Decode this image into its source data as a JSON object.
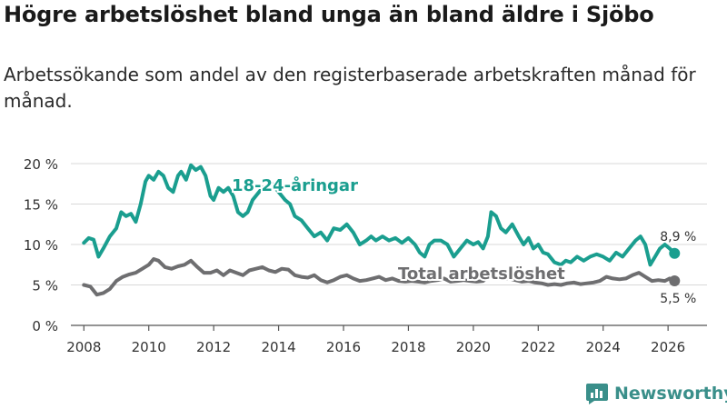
{
  "title": "Högre arbetslöshet bland unga än bland äldre i Sjöbo",
  "subtitle": "Arbetssökande som andel av den registerbaserade arbetskraften månad för månad.",
  "brand": "Newsworthy",
  "colors": {
    "youth": "#1a9e8f",
    "total": "#6e6e70",
    "grid": "#d8d8d8",
    "brand": "#3a8f8a"
  },
  "chart_data": {
    "type": "line",
    "title": "",
    "xlabel": "",
    "ylabel": "",
    "ylim": [
      0,
      20
    ],
    "xlim": [
      2007.6,
      2027.2
    ],
    "grid": true,
    "y_ticks": [
      {
        "value": 0,
        "label": "0 %"
      },
      {
        "value": 5,
        "label": "5 %"
      },
      {
        "value": 10,
        "label": "10 %"
      },
      {
        "value": 15,
        "label": "15 %"
      },
      {
        "value": 20,
        "label": "20 %"
      }
    ],
    "x_ticks": [
      {
        "value": 2008,
        "label": "2008"
      },
      {
        "value": 2010,
        "label": "2010"
      },
      {
        "value": 2012,
        "label": "2012"
      },
      {
        "value": 2014,
        "label": "2014"
      },
      {
        "value": 2016,
        "label": "2016"
      },
      {
        "value": 2018,
        "label": "2018"
      },
      {
        "value": 2020,
        "label": "2020"
      },
      {
        "value": 2022,
        "label": "2022"
      },
      {
        "value": 2024,
        "label": "2024"
      },
      {
        "value": 2026,
        "label": "2026"
      }
    ],
    "series": [
      {
        "name": "18-24-åringar",
        "label": "18-24-åringar",
        "color": "#1a9e8f",
        "end_label": "8,9 %",
        "points": [
          [
            2008.0,
            10.2
          ],
          [
            2008.15,
            10.8
          ],
          [
            2008.3,
            10.6
          ],
          [
            2008.45,
            8.5
          ],
          [
            2008.6,
            9.5
          ],
          [
            2008.8,
            11.0
          ],
          [
            2009.0,
            12.0
          ],
          [
            2009.15,
            14.0
          ],
          [
            2009.3,
            13.5
          ],
          [
            2009.45,
            13.8
          ],
          [
            2009.6,
            12.8
          ],
          [
            2009.75,
            15.0
          ],
          [
            2009.9,
            17.8
          ],
          [
            2010.0,
            18.5
          ],
          [
            2010.15,
            18.0
          ],
          [
            2010.3,
            19.0
          ],
          [
            2010.45,
            18.5
          ],
          [
            2010.6,
            17.0
          ],
          [
            2010.75,
            16.5
          ],
          [
            2010.9,
            18.5
          ],
          [
            2011.0,
            19.0
          ],
          [
            2011.15,
            18.0
          ],
          [
            2011.3,
            19.8
          ],
          [
            2011.45,
            19.2
          ],
          [
            2011.6,
            19.6
          ],
          [
            2011.75,
            18.5
          ],
          [
            2011.9,
            16.0
          ],
          [
            2012.0,
            15.5
          ],
          [
            2012.15,
            17.0
          ],
          [
            2012.3,
            16.5
          ],
          [
            2012.45,
            17.0
          ],
          [
            2012.6,
            16.0
          ],
          [
            2012.75,
            14.0
          ],
          [
            2012.9,
            13.5
          ],
          [
            2013.05,
            14.0
          ],
          [
            2013.2,
            15.5
          ],
          [
            2013.5,
            17.0
          ],
          [
            2013.8,
            17.5
          ],
          [
            2014.0,
            16.5
          ],
          [
            2014.2,
            15.5
          ],
          [
            2014.35,
            15.0
          ],
          [
            2014.5,
            13.5
          ],
          [
            2014.7,
            13.0
          ],
          [
            2014.9,
            12.0
          ],
          [
            2015.1,
            11.0
          ],
          [
            2015.3,
            11.5
          ],
          [
            2015.5,
            10.5
          ],
          [
            2015.7,
            12.0
          ],
          [
            2015.9,
            11.8
          ],
          [
            2016.1,
            12.5
          ],
          [
            2016.3,
            11.5
          ],
          [
            2016.5,
            10.0
          ],
          [
            2016.7,
            10.5
          ],
          [
            2016.85,
            11.0
          ],
          [
            2017.0,
            10.5
          ],
          [
            2017.2,
            11.0
          ],
          [
            2017.4,
            10.5
          ],
          [
            2017.6,
            10.8
          ],
          [
            2017.8,
            10.2
          ],
          [
            2018.0,
            10.8
          ],
          [
            2018.2,
            10.0
          ],
          [
            2018.35,
            9.0
          ],
          [
            2018.5,
            8.5
          ],
          [
            2018.65,
            10.0
          ],
          [
            2018.8,
            10.5
          ],
          [
            2019.0,
            10.5
          ],
          [
            2019.2,
            10.0
          ],
          [
            2019.4,
            8.5
          ],
          [
            2019.6,
            9.5
          ],
          [
            2019.8,
            10.5
          ],
          [
            2020.0,
            10.0
          ],
          [
            2020.15,
            10.3
          ],
          [
            2020.3,
            9.5
          ],
          [
            2020.45,
            11.0
          ],
          [
            2020.55,
            14.0
          ],
          [
            2020.7,
            13.5
          ],
          [
            2020.85,
            12.0
          ],
          [
            2021.0,
            11.5
          ],
          [
            2021.2,
            12.5
          ],
          [
            2021.4,
            11.0
          ],
          [
            2021.55,
            10.0
          ],
          [
            2021.7,
            10.8
          ],
          [
            2021.85,
            9.5
          ],
          [
            2022.0,
            10.0
          ],
          [
            2022.15,
            9.0
          ],
          [
            2022.3,
            8.8
          ],
          [
            2022.5,
            7.8
          ],
          [
            2022.7,
            7.5
          ],
          [
            2022.85,
            8.0
          ],
          [
            2023.0,
            7.8
          ],
          [
            2023.2,
            8.5
          ],
          [
            2023.4,
            8.0
          ],
          [
            2023.6,
            8.5
          ],
          [
            2023.8,
            8.8
          ],
          [
            2024.0,
            8.5
          ],
          [
            2024.2,
            8.0
          ],
          [
            2024.4,
            9.0
          ],
          [
            2024.6,
            8.5
          ],
          [
            2024.8,
            9.5
          ],
          [
            2025.0,
            10.5
          ],
          [
            2025.15,
            11.0
          ],
          [
            2025.3,
            10.0
          ],
          [
            2025.45,
            7.5
          ],
          [
            2025.6,
            8.5
          ],
          [
            2025.75,
            9.5
          ],
          [
            2025.9,
            10.0
          ],
          [
            2026.05,
            9.5
          ],
          [
            2026.2,
            8.9
          ]
        ]
      },
      {
        "name": "Total arbetslöshet",
        "label": "Total arbetslöshet",
        "color": "#6e6e70",
        "end_label": "5,5 %",
        "points": [
          [
            2008.0,
            5.0
          ],
          [
            2008.2,
            4.8
          ],
          [
            2008.4,
            3.8
          ],
          [
            2008.6,
            4.0
          ],
          [
            2008.8,
            4.5
          ],
          [
            2009.0,
            5.5
          ],
          [
            2009.2,
            6.0
          ],
          [
            2009.4,
            6.3
          ],
          [
            2009.6,
            6.5
          ],
          [
            2009.8,
            7.0
          ],
          [
            2010.0,
            7.5
          ],
          [
            2010.15,
            8.2
          ],
          [
            2010.3,
            8.0
          ],
          [
            2010.5,
            7.2
          ],
          [
            2010.7,
            7.0
          ],
          [
            2010.9,
            7.3
          ],
          [
            2011.1,
            7.5
          ],
          [
            2011.3,
            8.0
          ],
          [
            2011.5,
            7.2
          ],
          [
            2011.7,
            6.5
          ],
          [
            2011.9,
            6.5
          ],
          [
            2012.1,
            6.8
          ],
          [
            2012.3,
            6.2
          ],
          [
            2012.5,
            6.8
          ],
          [
            2012.7,
            6.5
          ],
          [
            2012.9,
            6.2
          ],
          [
            2013.1,
            6.8
          ],
          [
            2013.3,
            7.0
          ],
          [
            2013.5,
            7.2
          ],
          [
            2013.7,
            6.8
          ],
          [
            2013.9,
            6.6
          ],
          [
            2014.1,
            7.0
          ],
          [
            2014.3,
            6.9
          ],
          [
            2014.5,
            6.2
          ],
          [
            2014.7,
            6.0
          ],
          [
            2014.9,
            5.9
          ],
          [
            2015.1,
            6.2
          ],
          [
            2015.3,
            5.6
          ],
          [
            2015.5,
            5.3
          ],
          [
            2015.7,
            5.6
          ],
          [
            2015.9,
            6.0
          ],
          [
            2016.1,
            6.2
          ],
          [
            2016.3,
            5.8
          ],
          [
            2016.5,
            5.5
          ],
          [
            2016.7,
            5.6
          ],
          [
            2016.9,
            5.8
          ],
          [
            2017.1,
            6.0
          ],
          [
            2017.3,
            5.6
          ],
          [
            2017.5,
            5.8
          ],
          [
            2017.7,
            5.5
          ],
          [
            2017.9,
            5.4
          ],
          [
            2018.1,
            5.5
          ],
          [
            2018.3,
            5.4
          ],
          [
            2018.5,
            5.3
          ],
          [
            2018.7,
            5.5
          ],
          [
            2018.9,
            5.6
          ],
          [
            2019.1,
            5.8
          ],
          [
            2019.3,
            5.4
          ],
          [
            2019.5,
            5.5
          ],
          [
            2019.7,
            5.6
          ],
          [
            2019.9,
            5.5
          ],
          [
            2020.1,
            5.4
          ],
          [
            2020.3,
            5.5
          ],
          [
            2020.5,
            6.2
          ],
          [
            2020.7,
            6.0
          ],
          [
            2020.9,
            5.8
          ],
          [
            2021.1,
            5.8
          ],
          [
            2021.3,
            5.6
          ],
          [
            2021.5,
            5.4
          ],
          [
            2021.7,
            5.5
          ],
          [
            2021.9,
            5.3
          ],
          [
            2022.1,
            5.2
          ],
          [
            2022.3,
            5.0
          ],
          [
            2022.5,
            5.1
          ],
          [
            2022.7,
            5.0
          ],
          [
            2022.9,
            5.2
          ],
          [
            2023.1,
            5.3
          ],
          [
            2023.3,
            5.1
          ],
          [
            2023.5,
            5.2
          ],
          [
            2023.7,
            5.3
          ],
          [
            2023.9,
            5.5
          ],
          [
            2024.1,
            6.0
          ],
          [
            2024.3,
            5.8
          ],
          [
            2024.5,
            5.7
          ],
          [
            2024.7,
            5.8
          ],
          [
            2024.9,
            6.2
          ],
          [
            2025.1,
            6.5
          ],
          [
            2025.3,
            6.0
          ],
          [
            2025.5,
            5.5
          ],
          [
            2025.7,
            5.6
          ],
          [
            2025.9,
            5.5
          ],
          [
            2026.05,
            5.8
          ],
          [
            2026.2,
            5.5
          ]
        ]
      }
    ]
  }
}
